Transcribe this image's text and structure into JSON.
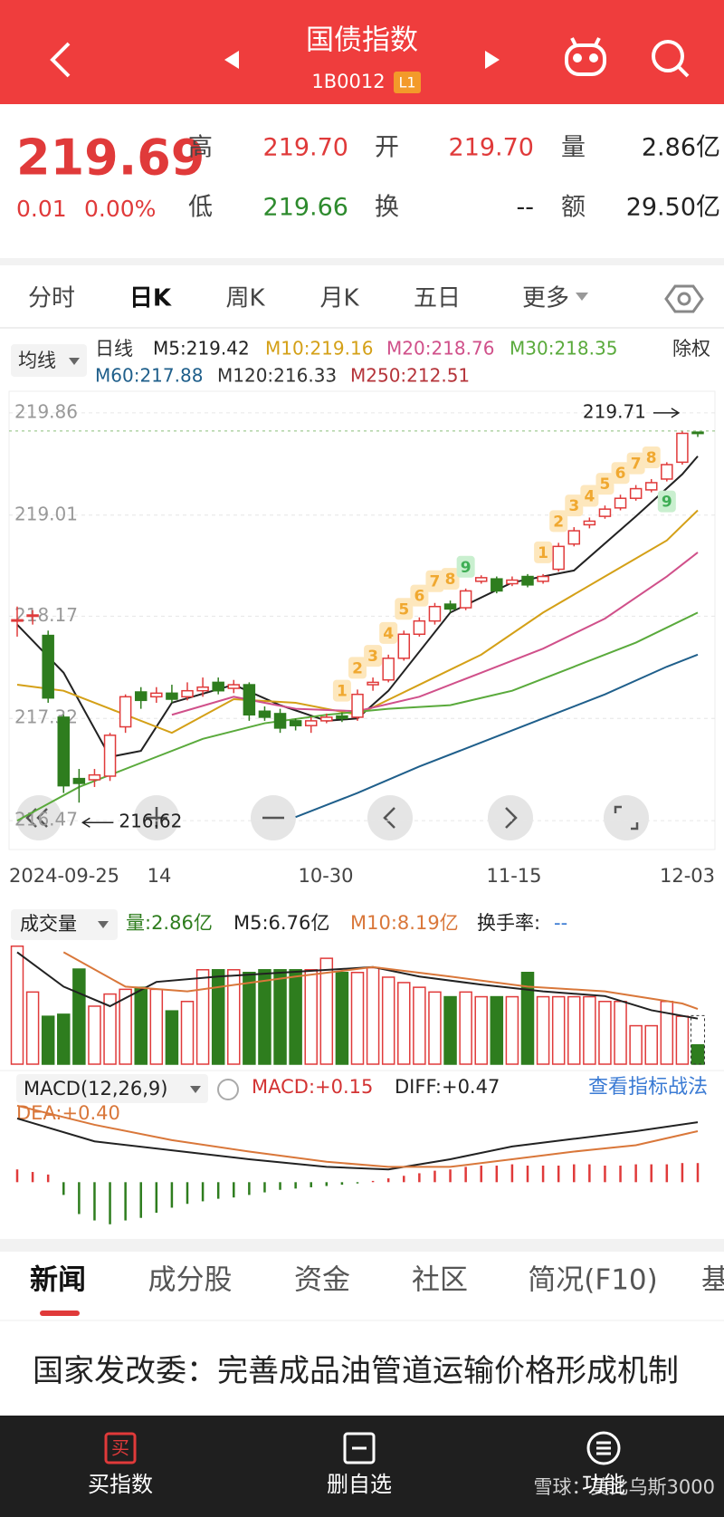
{
  "header": {
    "title": "国债指数",
    "code": "1B0012",
    "level": "L1"
  },
  "quote": {
    "price": "219.69",
    "change": "0.01",
    "change_pct": "0.00%",
    "fields": [
      {
        "label": "高",
        "value": "219.70"
      },
      {
        "label": "开",
        "value": "219.70"
      },
      {
        "label": "量",
        "value": "2.86亿"
      },
      {
        "label": "低",
        "value": "219.66"
      },
      {
        "label": "换",
        "value": "--"
      },
      {
        "label": "额",
        "value": "29.50亿"
      }
    ]
  },
  "period_tabs": [
    "分时",
    "日K",
    "周K",
    "月K",
    "五日",
    "更多"
  ],
  "chart_data": [
    {
      "type": "candlestick",
      "ma_selector": "均线",
      "period_label": "日线",
      "adjust_label": "除权",
      "ma_legend": [
        {
          "text": "M5:219.42",
          "color": "#222222"
        },
        {
          "text": "M10:219.16",
          "color": "#d4a017"
        },
        {
          "text": "M20:218.76",
          "color": "#d0508a"
        },
        {
          "text": "M30:218.35",
          "color": "#5aaa3c"
        },
        {
          "text": "M60:217.88",
          "color": "#1f5f8b"
        },
        {
          "text": "M120:216.33",
          "color": "#333333"
        },
        {
          "text": "M250:212.51",
          "color": "#b5343a"
        }
      ],
      "open": [
        218.13,
        218.17,
        218.01,
        217.33,
        216.82,
        216.81,
        216.84,
        217.25,
        217.54,
        217.5,
        217.53,
        217.5,
        217.55,
        217.62,
        217.57,
        217.6,
        217.38,
        217.36,
        217.3,
        217.26,
        217.3,
        217.34,
        217.33,
        217.6,
        217.64,
        217.82,
        218.02,
        218.13,
        218.27,
        218.24,
        218.46,
        218.48,
        218.44,
        218.5,
        218.46,
        218.56,
        218.77,
        218.93,
        219.0,
        219.07,
        219.15,
        219.22,
        219.31,
        219.45,
        219.7
      ],
      "high": [
        218.25,
        218.22,
        218.05,
        217.35,
        216.9,
        216.9,
        217.2,
        217.52,
        217.58,
        217.58,
        217.6,
        217.62,
        217.66,
        217.66,
        217.64,
        217.62,
        217.42,
        217.4,
        217.32,
        217.33,
        217.36,
        217.37,
        217.56,
        217.66,
        217.85,
        218.05,
        218.16,
        218.28,
        218.3,
        218.4,
        218.51,
        218.5,
        218.5,
        218.52,
        218.52,
        218.78,
        218.91,
        218.99,
        219.09,
        219.18,
        219.26,
        219.31,
        219.45,
        219.71,
        219.7
      ],
      "low": [
        218.0,
        218.1,
        217.45,
        216.7,
        216.62,
        216.75,
        216.8,
        217.2,
        217.4,
        217.45,
        217.45,
        217.47,
        217.5,
        217.52,
        217.53,
        217.3,
        217.3,
        217.2,
        217.22,
        217.2,
        217.28,
        217.29,
        217.3,
        217.55,
        217.62,
        217.8,
        218.0,
        218.1,
        218.2,
        218.22,
        218.44,
        218.36,
        218.42,
        218.41,
        218.44,
        218.54,
        218.75,
        218.9,
        218.98,
        219.05,
        219.13,
        219.2,
        219.29,
        219.43,
        219.66
      ],
      "close": [
        218.14,
        218.18,
        217.49,
        216.76,
        216.78,
        216.85,
        217.18,
        217.5,
        217.47,
        217.53,
        217.48,
        217.55,
        217.58,
        217.55,
        217.6,
        217.35,
        217.33,
        217.24,
        217.26,
        217.3,
        217.33,
        217.32,
        217.52,
        217.62,
        217.82,
        218.02,
        218.13,
        218.25,
        218.23,
        218.38,
        218.49,
        218.38,
        218.47,
        218.43,
        218.5,
        218.75,
        218.88,
        218.96,
        219.06,
        219.15,
        219.23,
        219.28,
        219.43,
        219.69,
        219.69
      ],
      "up_color": "#e03a3a",
      "down_color": "#2e7d1e",
      "ylim": [
        216.23,
        220.04
      ],
      "yticks": [
        219.86,
        219.01,
        218.17,
        217.32,
        216.47
      ],
      "dates": [
        "2024-09-25",
        "14",
        "10-30",
        "11-15",
        "12-03"
      ],
      "max_label": "219.71",
      "min_label": "216.62",
      "moving_averages": [
        {
          "color": "#222222",
          "x": [
            0,
            3,
            6,
            8,
            10,
            14,
            17,
            20,
            22,
            24,
            28,
            32,
            36,
            40,
            43,
            44
          ],
          "values": [
            218.1,
            217.7,
            217.0,
            217.05,
            217.45,
            217.6,
            217.43,
            217.3,
            217.32,
            217.55,
            218.2,
            218.45,
            218.55,
            219.0,
            219.35,
            219.5
          ]
        },
        {
          "color": "#d4a017",
          "x": [
            0,
            3,
            6,
            10,
            14,
            18,
            22,
            26,
            30,
            34,
            38,
            42,
            44
          ],
          "values": [
            217.6,
            217.55,
            217.4,
            217.2,
            217.48,
            217.45,
            217.35,
            217.6,
            217.85,
            218.2,
            218.5,
            218.8,
            219.05
          ]
        },
        {
          "color": "#d0508a",
          "x": [
            10,
            14,
            18,
            22,
            26,
            30,
            34,
            38,
            42,
            44
          ],
          "values": [
            217.35,
            217.5,
            217.4,
            217.38,
            217.5,
            217.7,
            217.9,
            218.15,
            218.5,
            218.7
          ]
        },
        {
          "color": "#5aaa3c",
          "x": [
            0,
            4,
            8,
            12,
            16,
            20,
            24,
            28,
            32,
            36,
            40,
            44
          ],
          "values": [
            216.47,
            216.75,
            216.95,
            217.15,
            217.28,
            217.35,
            217.4,
            217.43,
            217.55,
            217.75,
            217.95,
            218.2
          ]
        },
        {
          "color": "#1f5f8b",
          "x": [
            18,
            22,
            26,
            30,
            34,
            38,
            42,
            44
          ],
          "values": [
            216.5,
            216.7,
            216.92,
            217.12,
            217.32,
            217.52,
            217.75,
            217.85
          ]
        }
      ],
      "td_counts": [
        {
          "index": 21,
          "count": 1
        },
        {
          "index": 22,
          "count": 2
        },
        {
          "index": 23,
          "count": 3
        },
        {
          "index": 24,
          "count": 4
        },
        {
          "index": 25,
          "count": 5
        },
        {
          "index": 26,
          "count": 6
        },
        {
          "index": 27,
          "count": 7
        },
        {
          "index": 28,
          "count": 8
        },
        {
          "index": 29,
          "count": 9
        },
        {
          "index": 34,
          "count": 1
        },
        {
          "index": 35,
          "count": 2
        },
        {
          "index": 36,
          "count": 3
        },
        {
          "index": 37,
          "count": 4
        },
        {
          "index": 38,
          "count": 5
        },
        {
          "index": 39,
          "count": 6
        },
        {
          "index": 40,
          "count": 7
        },
        {
          "index": 41,
          "count": 8
        },
        {
          "index": 42,
          "count": 9,
          "placement": "below"
        }
      ],
      "td_color": "#f0a830",
      "td_final_color": "#3fae55"
    },
    {
      "type": "bar",
      "selector": "成交量",
      "legend": [
        {
          "text": "量:2.86亿",
          "color": "#2e7d1e"
        },
        {
          "text": "M5:6.76亿",
          "color": "#222222"
        },
        {
          "text": "M10:8.19亿",
          "color": "#d9773a"
        },
        {
          "text": "换手率:",
          "color": "#222222"
        },
        {
          "text": "--",
          "color": "#3b7bd4"
        }
      ],
      "values": [
        17.5,
        10.7,
        7.1,
        7.4,
        14.1,
        8.6,
        10.4,
        11.1,
        11.4,
        11.1,
        7.9,
        9.3,
        14.0,
        14.0,
        14.0,
        13.6,
        14.0,
        14.0,
        14.0,
        14.0,
        15.7,
        13.6,
        13.6,
        14.3,
        12.9,
        12.1,
        11.4,
        10.7,
        10.0,
        10.7,
        10.0,
        10.0,
        10.0,
        13.6,
        10.0,
        10.0,
        10.0,
        10.0,
        9.3,
        9.3,
        5.7,
        5.7,
        9.3,
        7.1,
        2.86
      ],
      "ylim": [
        0,
        18
      ],
      "moving_averages": [
        {
          "color": "#222222",
          "x": [
            0,
            3,
            6,
            9,
            13,
            18,
            23,
            26,
            30,
            34,
            38,
            41,
            44
          ],
          "values": [
            16.6,
            11.5,
            8.6,
            12.2,
            13.0,
            13.7,
            14.4,
            13.0,
            11.8,
            10.8,
            10.1,
            8.0,
            6.76
          ]
        },
        {
          "color": "#d9773a",
          "x": [
            3,
            7,
            11,
            18,
            23,
            28,
            33,
            38,
            43,
            44
          ],
          "values": [
            16.6,
            11.5,
            10.8,
            13.0,
            14.4,
            13.0,
            11.5,
            10.8,
            9.0,
            8.19
          ]
        }
      ]
    },
    {
      "type": "macd",
      "indicator": "MACD(12,26,9)",
      "legend": [
        {
          "text": "MACD:+0.15",
          "color": "#d33333"
        },
        {
          "text": "DIFF:+0.47",
          "color": "#222222"
        },
        {
          "text": "DEA:+0.40",
          "color": "#d9773a"
        }
      ],
      "link": "查看指标战法",
      "histogram": [
        0.1,
        0.08,
        0.06,
        -0.1,
        -0.25,
        -0.3,
        -0.33,
        -0.3,
        -0.28,
        -0.24,
        -0.2,
        -0.17,
        -0.15,
        -0.13,
        -0.12,
        -0.1,
        -0.08,
        -0.06,
        -0.05,
        -0.04,
        -0.03,
        -0.02,
        -0.01,
        0.01,
        0.03,
        0.05,
        0.07,
        0.09,
        0.1,
        0.12,
        0.13,
        0.13,
        0.14,
        0.13,
        0.13,
        0.13,
        0.14,
        0.14,
        0.13,
        0.13,
        0.14,
        0.14,
        0.14,
        0.15,
        0.15
      ],
      "lines": [
        {
          "color": "#222222",
          "x": [
            0,
            5,
            10,
            15,
            20,
            24,
            28,
            32,
            36,
            40,
            44
          ],
          "values": [
            0.5,
            0.32,
            0.25,
            0.18,
            0.12,
            0.1,
            0.18,
            0.28,
            0.34,
            0.4,
            0.47
          ]
        },
        {
          "color": "#d9773a",
          "x": [
            0,
            5,
            10,
            15,
            20,
            24,
            28,
            32,
            36,
            40,
            44
          ],
          "values": [
            0.6,
            0.45,
            0.33,
            0.24,
            0.16,
            0.12,
            0.12,
            0.18,
            0.24,
            0.29,
            0.4
          ]
        }
      ],
      "ylim": [
        -0.36,
        0.62
      ]
    }
  ],
  "news_tabs": [
    "新闻",
    "成分股",
    "资金",
    "社区",
    "简况(F10)",
    "基"
  ],
  "headline": "国家发改委：完善成品油管道运输价格形成机制",
  "bottom_bar": {
    "buttons": [
      {
        "icon": "买",
        "label": "买指数"
      },
      {
        "label": "删自选"
      },
      {
        "label": "功能"
      }
    ],
    "watermark": "雪球：莫比乌斯3000"
  }
}
